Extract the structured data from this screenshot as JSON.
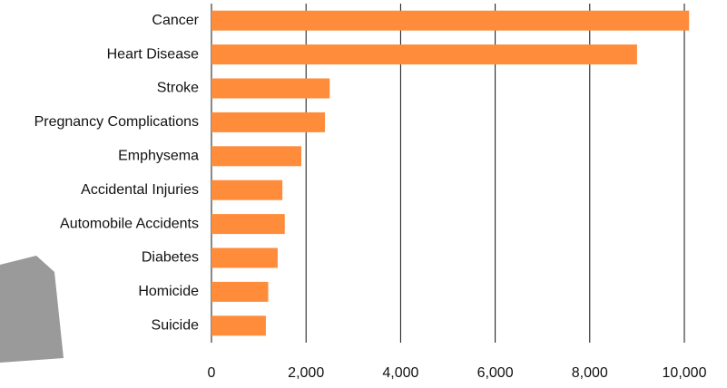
{
  "chart_data": {
    "type": "bar",
    "orientation": "horizontal",
    "categories": [
      "Cancer",
      "Heart Disease",
      "Stroke",
      "Pregnancy Complications",
      "Emphysema",
      "Accidental Injuries",
      "Automobile Accidents",
      "Diabetes",
      "Homicide",
      "Suicide"
    ],
    "values": [
      10100,
      9000,
      2500,
      2400,
      1900,
      1500,
      1550,
      1400,
      1200,
      1150
    ],
    "color": "#ff8c3a",
    "xlim": [
      0,
      10000
    ],
    "xticks": [
      0,
      {
        "value": 2000,
        "label": "2,000"
      },
      {
        "value": 4000,
        "label": "4,000"
      },
      {
        "value": 6000,
        "label": "6,000"
      },
      {
        "value": 8000,
        "label": "8,000"
      },
      {
        "value": 10000,
        "label": "10,000"
      }
    ],
    "grid": true
  }
}
